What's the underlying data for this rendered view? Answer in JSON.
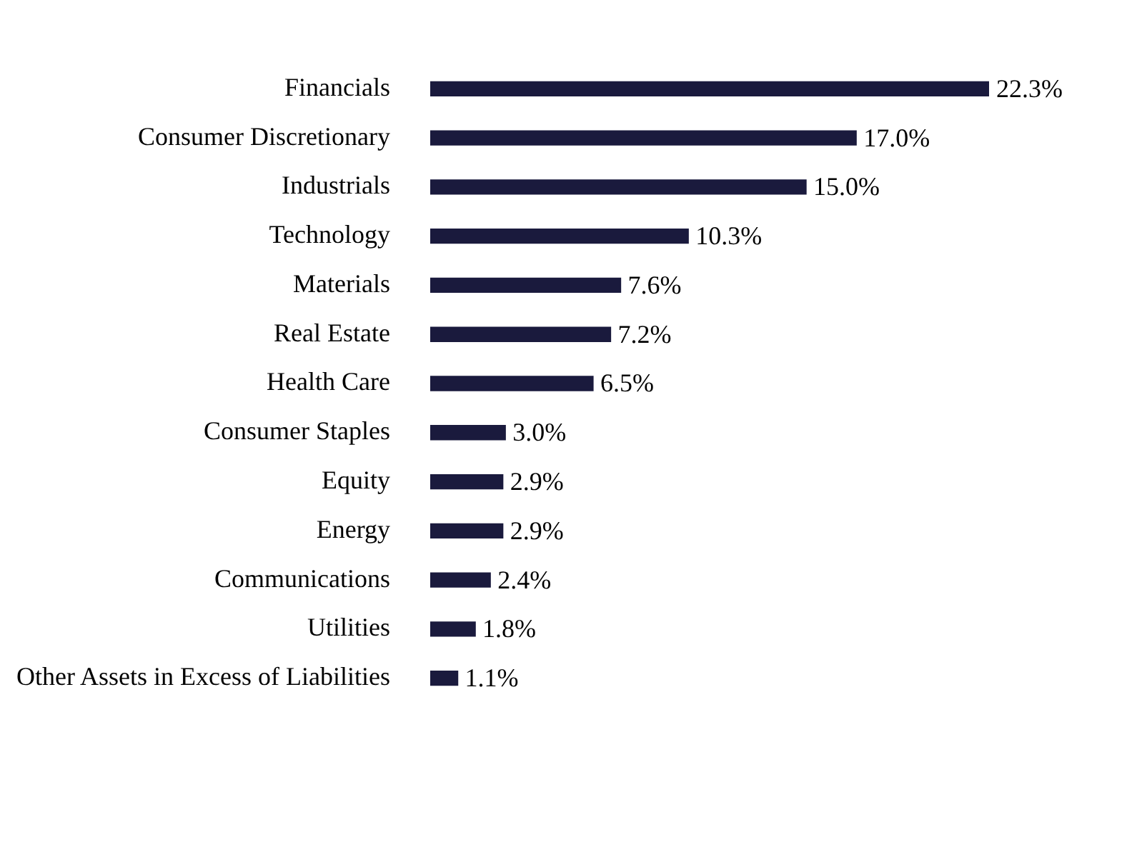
{
  "chart_data": {
    "type": "bar",
    "orientation": "horizontal",
    "categories": [
      "Financials",
      "Consumer Discretionary",
      "Industrials",
      "Technology",
      "Materials",
      "Real Estate",
      "Health Care",
      "Consumer Staples",
      "Equity",
      "Energy",
      "Communications",
      "Utilities",
      "Other Assets in Excess of Liabilities"
    ],
    "values": [
      22.3,
      17.0,
      15.0,
      10.3,
      7.6,
      7.2,
      6.5,
      3.0,
      2.9,
      2.9,
      2.4,
      1.8,
      1.1
    ],
    "value_labels": [
      "22.3%",
      "17.0%",
      "15.0%",
      "10.3%",
      "7.6%",
      "7.2%",
      "6.5%",
      "3.0%",
      "2.9%",
      "2.9%",
      "2.4%",
      "1.8%",
      "1.1%"
    ],
    "color": "#1a1a3d",
    "legend": false
  }
}
